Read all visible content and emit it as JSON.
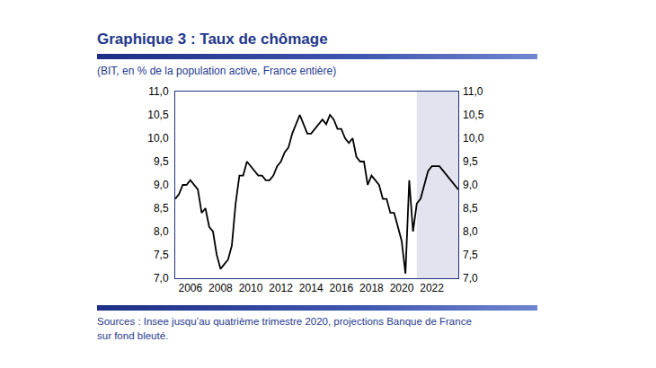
{
  "chart_data": {
    "type": "line",
    "title": "Graphique 3 : Taux de chômage",
    "subtitle": "(BIT, en % de la population active, France entière)",
    "source": [
      "Sources : Insee jusqu’au quatrième trimestre 2020, projections Banque de France",
      "sur fond bleuté."
    ],
    "color": "#000000",
    "x": [
      2005.0,
      2005.25,
      2005.5,
      2005.75,
      2006.0,
      2006.25,
      2006.5,
      2006.75,
      2007.0,
      2007.25,
      2007.5,
      2007.75,
      2008.0,
      2008.25,
      2008.5,
      2008.75,
      2009.0,
      2009.25,
      2009.5,
      2009.75,
      2010.0,
      2010.25,
      2010.5,
      2010.75,
      2011.0,
      2011.25,
      2011.5,
      2011.75,
      2012.0,
      2012.25,
      2012.5,
      2012.75,
      2013.0,
      2013.25,
      2013.5,
      2013.75,
      2014.0,
      2014.25,
      2014.5,
      2014.75,
      2015.0,
      2015.25,
      2015.5,
      2015.75,
      2016.0,
      2016.25,
      2016.5,
      2016.75,
      2017.0,
      2017.25,
      2017.5,
      2017.75,
      2018.0,
      2018.25,
      2018.5,
      2018.75,
      2019.0,
      2019.25,
      2019.5,
      2019.75,
      2020.0,
      2020.25,
      2020.5,
      2020.75,
      2021.0,
      2021.25,
      2021.5,
      2021.75,
      2022.0,
      2022.25,
      2022.5,
      2022.75,
      2023.0,
      2023.25,
      2023.5,
      2023.75
    ],
    "values": [
      8.7,
      8.8,
      9.0,
      9.0,
      9.1,
      9.0,
      8.9,
      8.4,
      8.5,
      8.1,
      8.0,
      7.5,
      7.2,
      7.3,
      7.4,
      7.7,
      8.6,
      9.2,
      9.2,
      9.5,
      9.4,
      9.3,
      9.2,
      9.2,
      9.1,
      9.1,
      9.2,
      9.4,
      9.5,
      9.7,
      9.8,
      10.1,
      10.3,
      10.5,
      10.3,
      10.1,
      10.1,
      10.2,
      10.3,
      10.4,
      10.3,
      10.5,
      10.4,
      10.2,
      10.2,
      10.0,
      9.9,
      10.0,
      9.6,
      9.5,
      9.5,
      9.0,
      9.2,
      9.1,
      9.0,
      8.7,
      8.7,
      8.4,
      8.4,
      8.1,
      7.8,
      7.1,
      9.1,
      8.0,
      8.6,
      8.7,
      9.0,
      9.3,
      9.4,
      9.4,
      9.4,
      9.3,
      9.2,
      9.1,
      9.0,
      8.9
    ],
    "shaded_from": 2021.0,
    "xlim": [
      2005.0,
      2023.75
    ],
    "xticks": [
      2006,
      2008,
      2010,
      2012,
      2014,
      2016,
      2018,
      2020,
      2022
    ],
    "ylim": [
      7.0,
      11.0
    ],
    "yticks": [
      {
        "value": 7.0,
        "label": "7,0"
      },
      {
        "value": 7.5,
        "label": "7,5"
      },
      {
        "value": 8.0,
        "label": "8,0"
      },
      {
        "value": 8.5,
        "label": "8,5"
      },
      {
        "value": 9.0,
        "label": "9,0"
      },
      {
        "value": 9.5,
        "label": "9,5"
      },
      {
        "value": 10.0,
        "label": "10,0"
      },
      {
        "value": 10.5,
        "label": "10,5"
      },
      {
        "value": 11.0,
        "label": "11,0"
      }
    ],
    "y2lim": [
      7.0,
      11.0
    ],
    "y2ticks": [
      {
        "value": 7.0,
        "label": "7,0"
      },
      {
        "value": 7.5,
        "label": "7,5"
      },
      {
        "value": 8.0,
        "label": "8,0"
      },
      {
        "value": 8.5,
        "label": "8,5"
      },
      {
        "value": 9.0,
        "label": "9,0"
      },
      {
        "value": 9.5,
        "label": "9,5"
      },
      {
        "value": 10.0,
        "label": "10,0"
      },
      {
        "value": 10.5,
        "label": "10,5"
      },
      {
        "value": 11.0,
        "label": "11,0"
      }
    ],
    "grid": false
  }
}
